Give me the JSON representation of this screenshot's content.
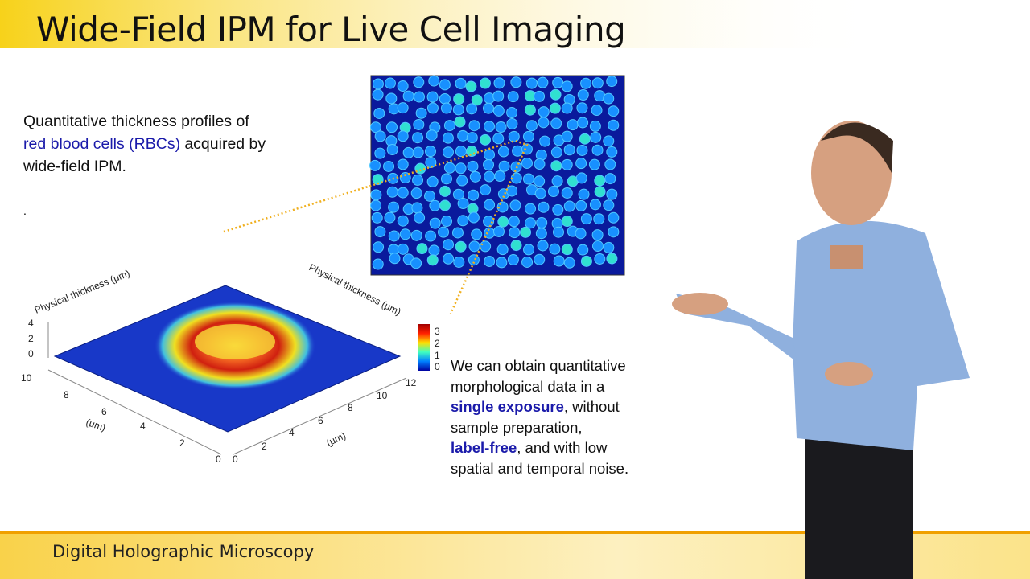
{
  "header": {
    "title": "Wide-Field IPM for Live Cell Imaging"
  },
  "left_text": {
    "line1": "Quantitative thickness profiles of",
    "highlight": "red blood cells (RBCs)",
    "line2_rest": "acquired by",
    "line3": "wide-field IPM.",
    "dot": "."
  },
  "right_text": {
    "line1": "We can obtain quantitative",
    "line2": "morphological data in a",
    "bold1": "single exposure",
    "line3_rest": ", without",
    "line4": "sample preparation,",
    "bold2": "label-free",
    "line5_rest": ", and with low",
    "line6": "spatial and temporal noise."
  },
  "plot": {
    "z_label": "Physical thickness (μm)",
    "side_label": "Physical thickness (μm)",
    "z_ticks": [
      4,
      2,
      0
    ],
    "left_axis_ticks": [
      10,
      8,
      6,
      4,
      2,
      0
    ],
    "left_axis_label": "(μm)",
    "right_axis_ticks": [
      0,
      2,
      4,
      6,
      8,
      10,
      12
    ],
    "right_axis_label": "(μm)",
    "colorbar_ticks": [
      3,
      2,
      1,
      0
    ]
  },
  "footer": {
    "title": "Digital Holographic Microscopy"
  }
}
